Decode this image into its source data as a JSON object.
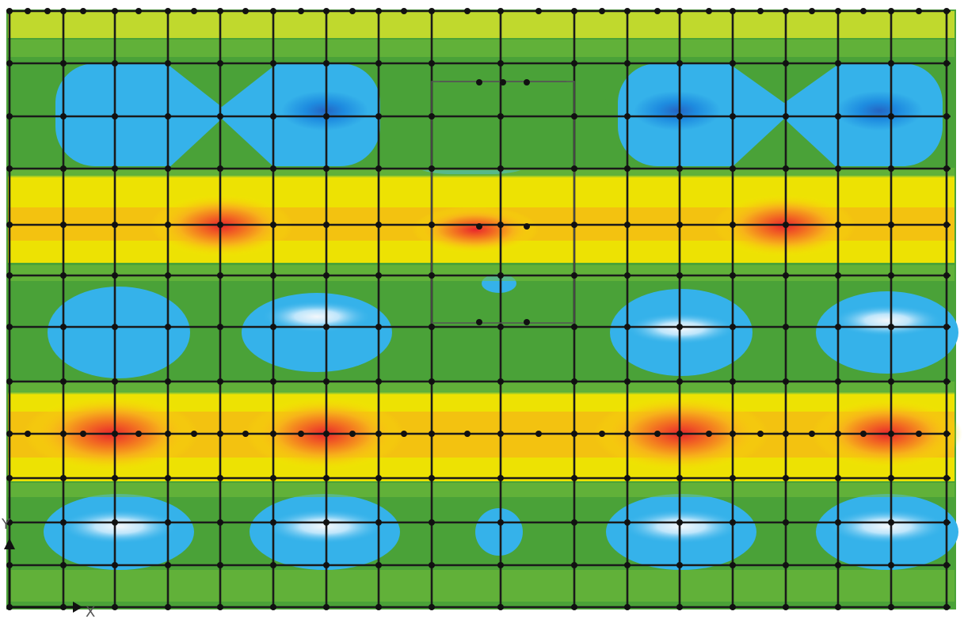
{
  "figure": {
    "type": "contour-plot-with-structural-grid",
    "palette": {
      "white": "#f3f7fb",
      "light_blue": "#35b2ea",
      "blue": "#1e8ce0",
      "dark_blue": "#2466c4",
      "green": "#4aa238",
      "light_green": "#74bd3a",
      "yellow_green": "#c6dc2c",
      "yellow": "#f6e600",
      "orange": "#f7a81c",
      "red": "#ec3e2a",
      "grid": "#1a1a1a",
      "node": "#111111"
    },
    "axis": {
      "x_label": "X",
      "y_label": "Y"
    },
    "bands": [
      {
        "name": "top-edge-yellow",
        "kind": "hot",
        "intensity": 0.55
      },
      {
        "name": "upper-blue",
        "kind": "cold",
        "intensity": 0.85
      },
      {
        "name": "upper-hot-band",
        "kind": "hot",
        "intensity": 0.95
      },
      {
        "name": "middle-blue",
        "kind": "cold",
        "intensity": 0.8
      },
      {
        "name": "lower-hot-band",
        "kind": "hot",
        "intensity": 1.0
      },
      {
        "name": "bottom-blue",
        "kind": "cold",
        "intensity": 0.75
      },
      {
        "name": "bottom-edge-green",
        "kind": "neutral",
        "intensity": 0.3
      }
    ]
  }
}
